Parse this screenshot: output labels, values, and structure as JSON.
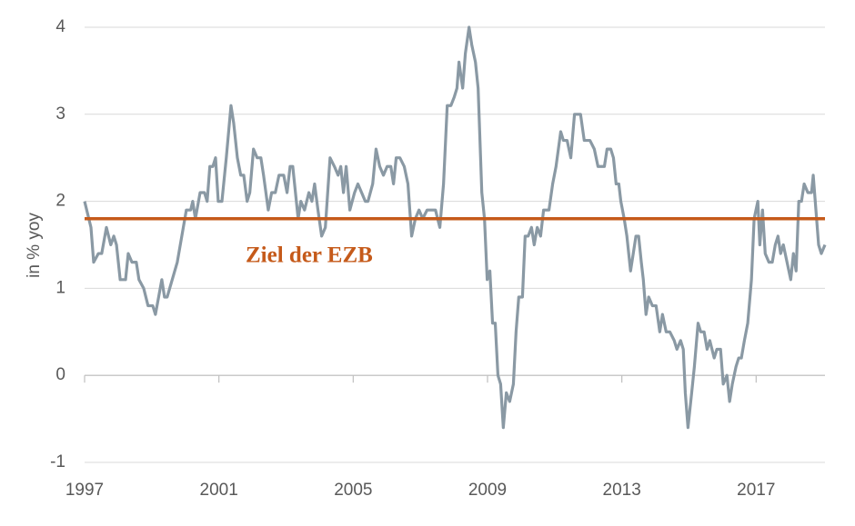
{
  "chart_data": {
    "type": "line",
    "y_label": "in % yoy",
    "xlim": [
      1997,
      2019.05
    ],
    "xticks": [
      1997,
      2001,
      2005,
      2009,
      2013,
      2017
    ],
    "ylim": [
      -1,
      4
    ],
    "yticks": [
      -1,
      0,
      1,
      2,
      3,
      4
    ],
    "grid": true,
    "target": {
      "value": 1.8,
      "label": "Ziel der EZB",
      "color": "#c55a1a"
    },
    "x": [
      1997.0,
      1997.19,
      1997.27,
      1997.41,
      1997.51,
      1997.65,
      1997.78,
      1997.87,
      1997.95,
      1998.06,
      1998.22,
      1998.3,
      1998.41,
      1998.54,
      1998.62,
      1998.76,
      1998.89,
      1999.03,
      1999.11,
      1999.3,
      1999.38,
      1999.46,
      1999.76,
      2000.03,
      2000.16,
      2000.22,
      2000.3,
      2000.44,
      2000.57,
      2000.65,
      2000.73,
      2000.82,
      2000.9,
      2000.98,
      2001.09,
      2001.22,
      2001.36,
      2001.44,
      2001.55,
      2001.65,
      2001.74,
      2001.84,
      2001.92,
      2002.03,
      2002.14,
      2002.25,
      2002.33,
      2002.47,
      2002.57,
      2002.68,
      2002.79,
      2002.93,
      2003.03,
      2003.12,
      2003.2,
      2003.28,
      2003.36,
      2003.44,
      2003.55,
      2003.68,
      2003.77,
      2003.85,
      2003.95,
      2004.06,
      2004.17,
      2004.31,
      2004.44,
      2004.55,
      2004.63,
      2004.71,
      2004.79,
      2004.9,
      2005.04,
      2005.14,
      2005.25,
      2005.36,
      2005.44,
      2005.58,
      2005.68,
      2005.79,
      2005.9,
      2006.01,
      2006.12,
      2006.2,
      2006.28,
      2006.39,
      2006.52,
      2006.63,
      2006.74,
      2006.85,
      2006.96,
      2007.07,
      2007.2,
      2007.45,
      2007.58,
      2007.69,
      2007.8,
      2007.91,
      2008.01,
      2008.09,
      2008.15,
      2008.26,
      2008.34,
      2008.45,
      2008.53,
      2008.64,
      2008.72,
      2008.83,
      2008.91,
      2008.99,
      2009.07,
      2009.15,
      2009.23,
      2009.31,
      2009.39,
      2009.47,
      2009.56,
      2009.66,
      2009.77,
      2009.85,
      2009.93,
      2010.04,
      2010.12,
      2010.21,
      2010.31,
      2010.39,
      2010.48,
      2010.58,
      2010.67,
      2010.83,
      2010.94,
      2011.04,
      2011.18,
      2011.26,
      2011.37,
      2011.48,
      2011.59,
      2011.77,
      2011.88,
      2012.05,
      2012.18,
      2012.29,
      2012.48,
      2012.56,
      2012.67,
      2012.75,
      2012.83,
      2012.91,
      2012.97,
      2013.07,
      2013.15,
      2013.26,
      2013.34,
      2013.42,
      2013.5,
      2013.58,
      2013.64,
      2013.72,
      2013.8,
      2013.91,
      2014.02,
      2014.13,
      2014.21,
      2014.32,
      2014.43,
      2014.56,
      2014.64,
      2014.75,
      2014.83,
      2014.89,
      2014.97,
      2015.08,
      2015.16,
      2015.27,
      2015.35,
      2015.45,
      2015.54,
      2015.62,
      2015.75,
      2015.83,
      2015.94,
      2016.02,
      2016.13,
      2016.21,
      2016.29,
      2016.4,
      2016.48,
      2016.56,
      2016.65,
      2016.75,
      2016.86,
      2016.94,
      2017.05,
      2017.11,
      2017.19,
      2017.27,
      2017.38,
      2017.48,
      2017.57,
      2017.65,
      2017.73,
      2017.81,
      2017.92,
      2018.03,
      2018.11,
      2018.19,
      2018.27,
      2018.35,
      2018.43,
      2018.54,
      2018.65,
      2018.7,
      2018.78,
      2018.86,
      2018.94,
      2019.05
    ],
    "series": [
      {
        "color": "#8a99a4",
        "values": [
          2.0,
          1.7,
          1.3,
          1.4,
          1.4,
          1.7,
          1.5,
          1.6,
          1.5,
          1.1,
          1.1,
          1.4,
          1.3,
          1.3,
          1.1,
          1.0,
          0.8,
          0.8,
          0.7,
          1.1,
          0.9,
          0.9,
          1.3,
          1.9,
          1.9,
          2.0,
          1.8,
          2.1,
          2.1,
          2.0,
          2.4,
          2.4,
          2.5,
          2.0,
          2.0,
          2.5,
          3.1,
          2.9,
          2.5,
          2.3,
          2.3,
          2.0,
          2.1,
          2.6,
          2.5,
          2.5,
          2.3,
          1.9,
          2.1,
          2.1,
          2.3,
          2.3,
          2.1,
          2.4,
          2.4,
          2.1,
          1.8,
          2.0,
          1.9,
          2.1,
          2.0,
          2.2,
          1.9,
          1.6,
          1.7,
          2.5,
          2.4,
          2.3,
          2.4,
          2.1,
          2.4,
          1.9,
          2.1,
          2.2,
          2.1,
          2.0,
          2.0,
          2.2,
          2.6,
          2.4,
          2.3,
          2.4,
          2.4,
          2.2,
          2.5,
          2.5,
          2.4,
          2.2,
          1.6,
          1.8,
          1.9,
          1.8,
          1.9,
          1.9,
          1.7,
          2.2,
          3.1,
          3.1,
          3.2,
          3.3,
          3.6,
          3.3,
          3.7,
          4.0,
          3.8,
          3.6,
          3.3,
          2.1,
          1.8,
          1.1,
          1.2,
          0.6,
          0.6,
          0.0,
          -0.1,
          -0.6,
          -0.2,
          -0.3,
          -0.1,
          0.5,
          0.9,
          0.9,
          1.6,
          1.6,
          1.7,
          1.5,
          1.7,
          1.6,
          1.9,
          1.9,
          2.2,
          2.4,
          2.8,
          2.7,
          2.7,
          2.5,
          3.0,
          3.0,
          2.7,
          2.7,
          2.6,
          2.4,
          2.4,
          2.6,
          2.6,
          2.5,
          2.2,
          2.2,
          2.0,
          1.8,
          1.6,
          1.2,
          1.4,
          1.6,
          1.6,
          1.3,
          1.1,
          0.7,
          0.9,
          0.8,
          0.8,
          0.5,
          0.7,
          0.5,
          0.5,
          0.4,
          0.3,
          0.4,
          0.3,
          -0.2,
          -0.6,
          -0.2,
          0.1,
          0.6,
          0.5,
          0.5,
          0.3,
          0.4,
          0.2,
          0.3,
          0.3,
          -0.1,
          0.0,
          -0.3,
          -0.1,
          0.1,
          0.2,
          0.2,
          0.4,
          0.6,
          1.1,
          1.8,
          2.0,
          1.5,
          1.9,
          1.4,
          1.3,
          1.3,
          1.5,
          1.6,
          1.4,
          1.5,
          1.3,
          1.1,
          1.4,
          1.2,
          2.0,
          2.0,
          2.2,
          2.1,
          2.1,
          2.3,
          1.9,
          1.5,
          1.4,
          1.5
        ]
      }
    ]
  }
}
